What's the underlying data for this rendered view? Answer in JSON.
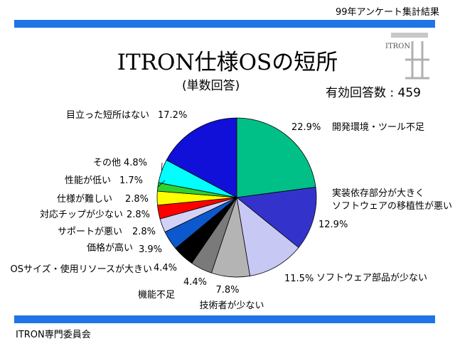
{
  "header": {
    "survey_label": "99年アンケート集計結果"
  },
  "title": "ITRON仕様OSの短所",
  "subtitle": "(単数回答)",
  "response_count": "有効回答数 : 459",
  "footer": "ITRON専門委員会",
  "logo": {
    "text": "ITRON"
  },
  "colors": {
    "bar": "#1f74e6"
  },
  "chart_data": {
    "type": "pie",
    "title": "ITRON仕様OSの短所",
    "start_angle_deg": 90,
    "direction": "clockwise",
    "slices": [
      {
        "label": "開発環境・ツール不足",
        "value": 22.9,
        "pct": "22.9%",
        "color": "#00c087"
      },
      {
        "label": "実装依存部分が大きくソフトウェアの移植性が悪い",
        "label_lines": [
          "実装依存部分が大きく",
          "ソフトウェアの移植性が悪い"
        ],
        "value": 12.9,
        "pct": "12.9%",
        "color": "#3333cc"
      },
      {
        "label": "ソフトウェア部品が少ない",
        "value": 11.5,
        "pct": "11.5%",
        "color": "#c8c8f4"
      },
      {
        "label": "技術者が少ない",
        "value": 7.8,
        "pct": "7.8%",
        "color": "#b4b4b4"
      },
      {
        "label": "機能不足",
        "value": 4.4,
        "pct": "4.4%",
        "color": "#7a7a7a"
      },
      {
        "label": "OSサイズ・使用リソースが大きい",
        "value": 4.4,
        "pct": "4.4%",
        "color": "#000000"
      },
      {
        "label": "価格が高い",
        "value": 3.9,
        "pct": "3.9%",
        "color": "#0d58cc"
      },
      {
        "label": "サポートが悪い",
        "value": 2.8,
        "pct": "2.8%",
        "color": "#d2d2f6"
      },
      {
        "label": "対応チップが少ない",
        "value": 2.8,
        "pct": "2.8%",
        "color": "#ff0000"
      },
      {
        "label": "仕様が難しい",
        "value": 2.8,
        "pct": "2.8%",
        "color": "#ffff00"
      },
      {
        "label": "性能が低い",
        "value": 1.7,
        "pct": "1.7%",
        "color": "#2fd22f"
      },
      {
        "label": "その他",
        "value": 4.8,
        "pct": "4.8%",
        "color": "#00ffff"
      },
      {
        "label": "目立った短所はない",
        "value": 17.2,
        "pct": "17.2%",
        "color": "#1010d8"
      }
    ]
  }
}
